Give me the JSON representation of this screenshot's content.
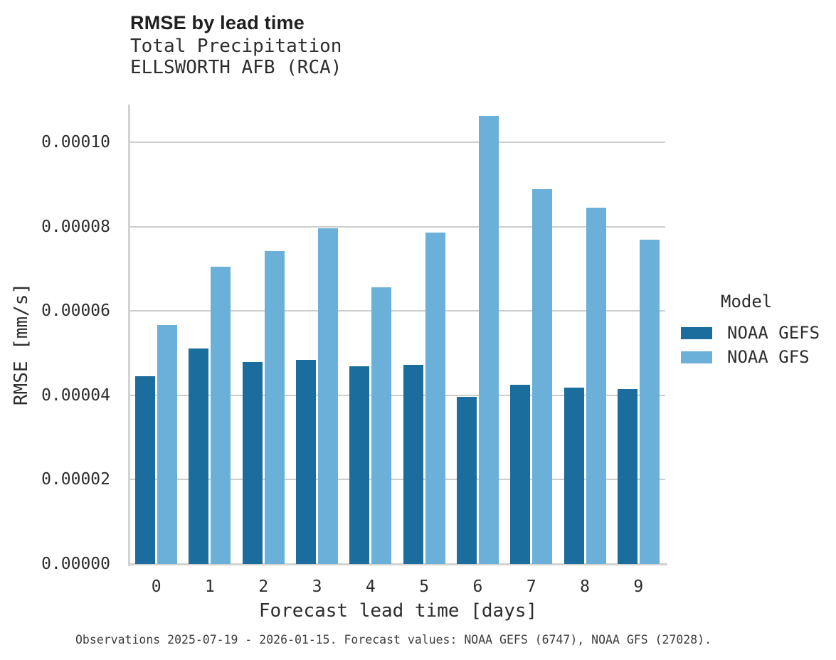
{
  "header": {
    "title": "RMSE by lead time",
    "subtitle1": "Total Precipitation",
    "subtitle2": "ELLSWORTH AFB (RCA)"
  },
  "legend": {
    "title": "Model",
    "items": [
      {
        "label": "NOAA GEFS",
        "color": "#1b6d9d"
      },
      {
        "label": "NOAA GFS",
        "color": "#6bb0d9"
      }
    ]
  },
  "footer": {
    "caption": "Observations 2025-07-19 - 2026-01-15. Forecast values: NOAA GEFS (6747), NOAA GFS (27028)."
  },
  "chart_data": {
    "type": "bar",
    "title": "RMSE by lead time",
    "subtitle": [
      "Total Precipitation",
      "ELLSWORTH AFB (RCA)"
    ],
    "categories": [
      "0",
      "1",
      "2",
      "3",
      "4",
      "5",
      "6",
      "7",
      "8",
      "9"
    ],
    "series": [
      {
        "name": "NOAA GEFS",
        "color": "#1b6d9d",
        "values": [
          4.46e-05,
          5.12e-05,
          4.8e-05,
          4.85e-05,
          4.69e-05,
          4.73e-05,
          3.97e-05,
          4.26e-05,
          4.18e-05,
          4.15e-05
        ]
      },
      {
        "name": "NOAA GFS",
        "color": "#6bb0d9",
        "values": [
          5.67e-05,
          7.05e-05,
          7.43e-05,
          7.96e-05,
          6.57e-05,
          7.86e-05,
          0.0001063,
          8.89e-05,
          8.45e-05,
          7.69e-05
        ]
      }
    ],
    "xlabel": "Forecast lead time [days]",
    "ylabel": "RMSE [mm/s]",
    "ylim": [
      0,
      0.000109
    ],
    "yticks": [
      0.0,
      2e-05,
      4e-05,
      6e-05,
      8e-05,
      0.0001
    ],
    "ytick_labels": [
      "0.00000",
      "0.00002",
      "0.00004",
      "0.00006",
      "0.00008",
      "0.00010"
    ],
    "grid": true,
    "legend_title": "Model",
    "legend_position": "right"
  }
}
